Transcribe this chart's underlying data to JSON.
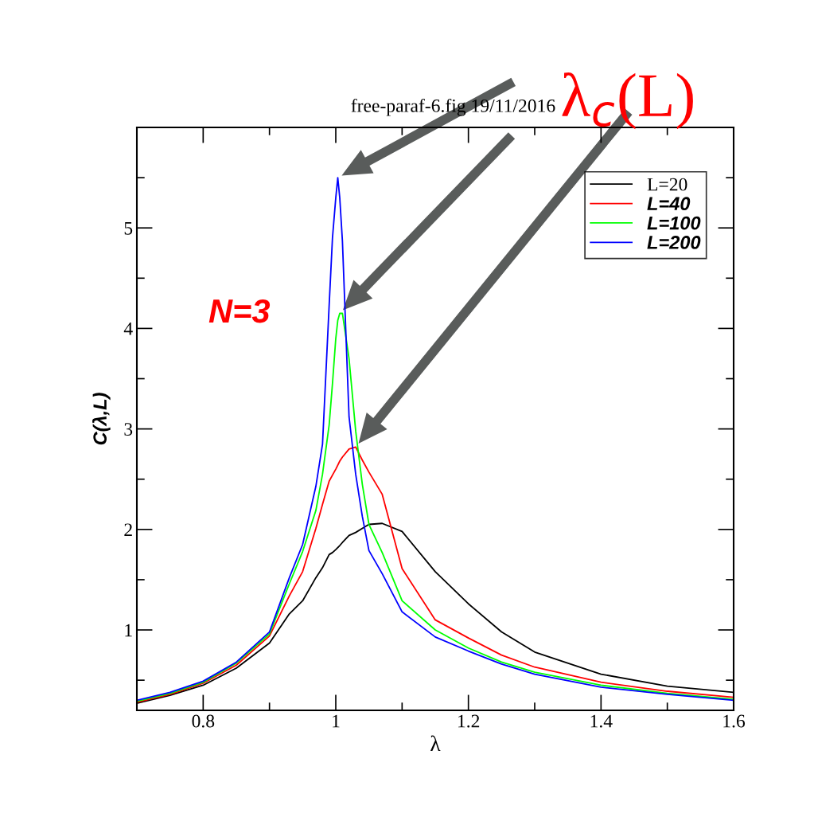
{
  "chart_data": {
    "type": "line",
    "title": "free-paraf-6.fig 19/11/2016",
    "xlabel": "λ",
    "ylabel": "C(λ,L)",
    "annotations": [
      "N=3",
      "λ$_{c}$(L)"
    ],
    "xlim": [
      0.7,
      1.6
    ],
    "ylim": [
      0.2,
      6
    ],
    "xticks": [
      0.8,
      {
        "value": 0.9,
        "label": null
      },
      1,
      {
        "value": 1.1,
        "label": null
      },
      1.2,
      {
        "value": 1.3,
        "label": null
      },
      1.4,
      {
        "value": 1.5,
        "label": null
      },
      1.6
    ],
    "yticks": [
      {
        "value": 0.5,
        "label": null
      },
      1,
      {
        "value": 1.5,
        "label": null
      },
      2,
      {
        "value": 2.5,
        "label": null
      },
      3,
      {
        "value": 3.5,
        "label": null
      },
      4,
      {
        "value": 4.5,
        "label": null
      },
      5,
      {
        "value": 5.5,
        "label": null
      }
    ],
    "x": [
      0.7,
      0.75,
      0.8,
      0.85,
      0.9,
      0.93,
      0.95,
      0.97,
      0.98,
      0.99,
      0.995,
      1.0,
      1.003,
      1.006,
      1.01,
      1.02,
      1.03,
      1.04,
      1.05,
      1.07,
      1.1,
      1.15,
      1.2,
      1.25,
      1.3,
      1.4,
      1.5,
      1.6
    ],
    "series": [
      {
        "name": "L=20",
        "color": "#000000",
        "values": [
          0.27,
          0.35,
          0.45,
          0.62,
          0.87,
          1.16,
          1.29,
          1.52,
          1.62,
          1.75,
          1.77,
          1.8,
          1.82,
          1.84,
          1.87,
          1.94,
          1.97,
          2.01,
          2.05,
          2.06,
          1.98,
          1.58,
          1.26,
          0.98,
          0.78,
          0.56,
          0.44,
          0.38
        ]
      },
      {
        "name": "L=40",
        "color": "#ff0000",
        "values": [
          0.28,
          0.36,
          0.47,
          0.65,
          0.94,
          1.34,
          1.58,
          2.01,
          2.25,
          2.48,
          2.54,
          2.6,
          2.64,
          2.68,
          2.72,
          2.8,
          2.82,
          2.69,
          2.57,
          2.35,
          1.61,
          1.1,
          0.92,
          0.75,
          0.63,
          0.48,
          0.39,
          0.33
        ]
      },
      {
        "name": "L=100",
        "color": "#00ff00",
        "values": [
          0.29,
          0.37,
          0.48,
          0.67,
          0.96,
          1.46,
          1.78,
          2.19,
          2.55,
          3.04,
          3.45,
          3.9,
          4.08,
          4.15,
          4.15,
          3.7,
          2.98,
          2.45,
          2.05,
          1.77,
          1.29,
          1.0,
          0.82,
          0.68,
          0.58,
          0.45,
          0.37,
          0.31
        ]
      },
      {
        "name": "L=200",
        "color": "#0000ff",
        "values": [
          0.3,
          0.38,
          0.49,
          0.68,
          0.98,
          1.52,
          1.85,
          2.43,
          2.85,
          4.23,
          4.9,
          5.3,
          5.5,
          5.3,
          4.87,
          3.12,
          2.55,
          2.13,
          1.79,
          1.56,
          1.18,
          0.93,
          0.79,
          0.66,
          0.56,
          0.43,
          0.36,
          0.3
        ]
      }
    ],
    "legend": "top right",
    "grid": false,
    "marker": "none",
    "line_style": "solid"
  }
}
